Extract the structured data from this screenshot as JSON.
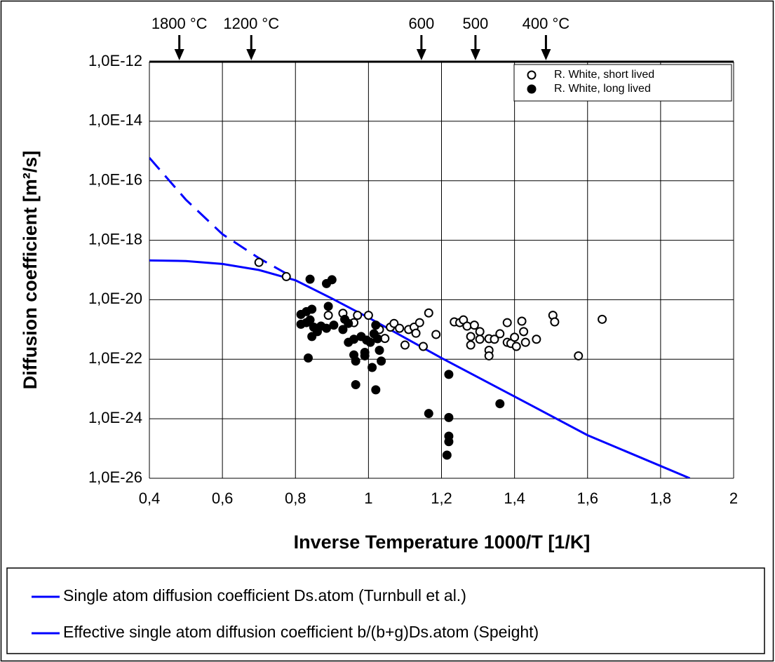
{
  "chart_data": {
    "type": "scatter",
    "ylabel": "Diffusion coefficient [m²/s]",
    "xlabel": "Inverse Temperature 1000/T [1/K]",
    "log_y": true,
    "grid": true,
    "legend": "upper right",
    "xlim": [
      0.4,
      2
    ],
    "xticks": [
      {
        "value": 0.4,
        "label": "0,4"
      },
      {
        "value": 0.6,
        "label": "0,6"
      },
      {
        "value": 0.8,
        "label": "0,8"
      },
      1,
      {
        "value": 1.2,
        "label": "1,2"
      },
      {
        "value": 1.4,
        "label": "1,4"
      },
      {
        "value": 1.6,
        "label": "1,6"
      },
      {
        "value": 1.8,
        "label": "1,8"
      },
      2
    ],
    "ylim": [
      1e-26,
      1e-12
    ],
    "yticks": [
      {
        "value": 1e-26,
        "label": "1,0E-26"
      },
      {
        "value": 1e-24,
        "label": "1,0E-24"
      },
      {
        "value": 1e-22,
        "label": "1,0E-22"
      },
      {
        "value": 1e-20,
        "label": "1,0E-20"
      },
      {
        "value": 1e-18,
        "label": "1,0E-18"
      },
      {
        "value": 1e-16,
        "label": "1,0E-16"
      },
      {
        "value": 1e-14,
        "label": "1,0E-14"
      },
      {
        "value": 1e-12,
        "label": "1,0E-12"
      }
    ],
    "annotations": [
      {
        "text": "1800 °C",
        "x": 0.482
      },
      {
        "text": "1200 °C",
        "x": 0.679
      },
      {
        "text": "600",
        "x": 1.145
      },
      {
        "text": "500",
        "x": 1.293
      },
      {
        "text": "400 °C",
        "x": 1.486
      }
    ],
    "series": [
      {
        "name": "R. White, short lived",
        "type": "scatter",
        "marker": "open",
        "color": "#000000",
        "x": [
          0.7,
          0.775,
          0.89,
          0.93,
          0.97,
          1.0,
          0.96,
          1.03,
          1.045,
          1.06,
          1.07,
          1.085,
          1.1,
          1.11,
          1.125,
          1.14,
          1.13,
          1.15,
          1.165,
          1.185,
          1.235,
          1.25,
          1.26,
          1.27,
          1.28,
          1.28,
          1.29,
          1.305,
          1.305,
          1.33,
          1.33,
          1.33,
          1.345,
          1.36,
          1.38,
          1.38,
          1.39,
          1.4,
          1.405,
          1.42,
          1.425,
          1.43,
          1.46,
          1.505,
          1.51,
          1.575,
          1.64
        ],
        "values": [
          1.8e-19,
          6e-20,
          3e-21,
          3.5e-21,
          3e-21,
          3e-21,
          1.7e-21,
          1e-21,
          5e-22,
          1.2e-21,
          1.6e-21,
          1.1e-21,
          3e-22,
          1e-21,
          1.2e-21,
          1.7e-21,
          7.5e-22,
          2.7e-22,
          3.6e-21,
          6.8e-22,
          1.8e-21,
          1.7e-21,
          2.1e-21,
          1.3e-21,
          5.8e-22,
          3e-22,
          1.4e-21,
          8.5e-22,
          4.7e-22,
          4.9e-22,
          2e-22,
          1.3e-22,
          4.7e-22,
          7.2e-22,
          1.7e-21,
          3.7e-22,
          3.4e-22,
          5.5e-22,
          2.7e-22,
          1.9e-21,
          8.5e-22,
          3.7e-22,
          4.7e-22,
          3e-21,
          1.8e-21,
          1.3e-22,
          2.2e-21
        ]
      },
      {
        "name": "R. White, long lived",
        "type": "scatter",
        "marker": "filled",
        "color": "#000000",
        "x": [
          0.9,
          0.885,
          0.84,
          0.89,
          0.815,
          0.83,
          0.845,
          0.815,
          0.83,
          0.84,
          0.85,
          0.86,
          0.845,
          0.87,
          0.885,
          0.905,
          0.93,
          0.935,
          0.945,
          0.945,
          0.96,
          0.98,
          0.995,
          1.005,
          1.015,
          1.02,
          1.025,
          1.03,
          1.035,
          0.99,
          0.96,
          0.965,
          0.99,
          1.01,
          0.835,
          0.965,
          1.02,
          1.22,
          1.165,
          1.22,
          1.22,
          1.22,
          1.215,
          1.36
        ],
        "values": [
          4.7e-20,
          3.5e-20,
          4.9e-20,
          6e-21,
          3.2e-21,
          4e-21,
          4.8e-21,
          1.5e-21,
          1.7e-21,
          2.1e-21,
          1.2e-21,
          8.5e-22,
          5.8e-22,
          1.3e-21,
          1.1e-21,
          1.4e-21,
          1e-21,
          2.2e-21,
          1.6e-21,
          3.7e-22,
          4.7e-22,
          5.8e-22,
          4.4e-22,
          3.7e-22,
          7.2e-22,
          1.4e-21,
          4.9e-22,
          2e-22,
          8.7e-23,
          1.7e-22,
          1.4e-22,
          8.7e-23,
          1.3e-22,
          5.3e-23,
          1.1e-22,
          1.4e-23,
          9.4e-24,
          3.1e-23,
          1.5e-24,
          1.1e-24,
          2.6e-25,
          1.7e-25,
          6e-26,
          3.2e-24
        ]
      },
      {
        "name": "Single atom diffusion coefficient Ds.atom (Turnbull et al.)",
        "type": "line",
        "linestyle": "dashed",
        "color": "#0000ff",
        "x": [
          0.4,
          0.5,
          0.6,
          0.7,
          0.78
        ],
        "values": [
          5.9e-16,
          2.3e-17,
          1.6e-18,
          2.5e-19,
          7e-20
        ]
      },
      {
        "name": "Effective single atom diffusion coefficient b/(b+g)Ds.atom (Speight)",
        "type": "line",
        "linestyle": "solid",
        "color": "#0000ff",
        "x": [
          0.4,
          0.5,
          0.6,
          0.7,
          0.8,
          0.9,
          1.0,
          1.2,
          1.4,
          1.6,
          1.88
        ],
        "values": [
          2.1e-19,
          2e-19,
          1.6e-19,
          1e-19,
          4.5e-20,
          1.1e-20,
          2.5e-21,
          1.1e-22,
          5.6e-24,
          2.8e-25,
          1e-26
        ]
      }
    ]
  }
}
